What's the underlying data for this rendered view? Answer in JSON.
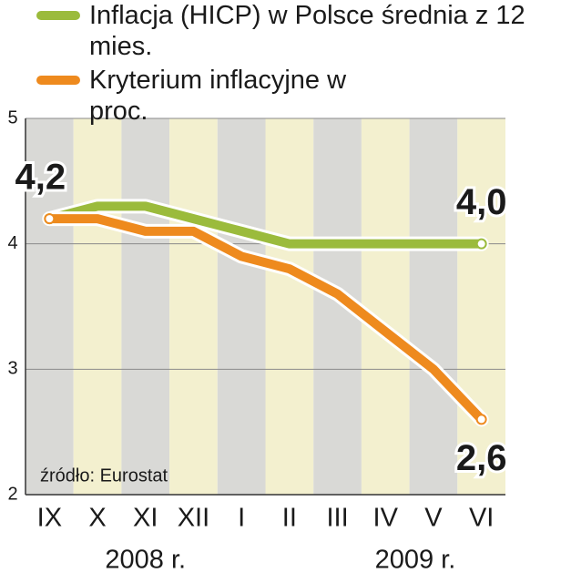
{
  "chart_data": {
    "type": "line",
    "categories": [
      "IX",
      "X",
      "XI",
      "XII",
      "I",
      "II",
      "III",
      "IV",
      "V",
      "VI"
    ],
    "period_labels": [
      "2008 r.",
      "2009 r."
    ],
    "series": [
      {
        "name": "Inflacja (HICP) w Polsce średnia z 12 mies.",
        "color": "#9bbb3c",
        "values": [
          4.2,
          4.3,
          4.3,
          4.2,
          4.1,
          4.0,
          4.0,
          4.0,
          4.0,
          4.0
        ],
        "value_labels": [
          "4,2",
          null,
          null,
          null,
          null,
          null,
          null,
          null,
          null,
          "4,0"
        ]
      },
      {
        "name": "Kryterium inflacyjne w proc.",
        "color": "#ee8a1e",
        "values": [
          4.2,
          4.2,
          4.1,
          4.1,
          3.9,
          3.8,
          3.6,
          3.3,
          3.0,
          2.6
        ],
        "value_labels": [
          null,
          null,
          null,
          null,
          null,
          null,
          null,
          null,
          null,
          "2,6"
        ]
      }
    ],
    "ylim": [
      2,
      5
    ],
    "yticks": [
      2,
      3,
      4,
      5
    ],
    "grid": true,
    "source": "źródło: Eurostat"
  }
}
